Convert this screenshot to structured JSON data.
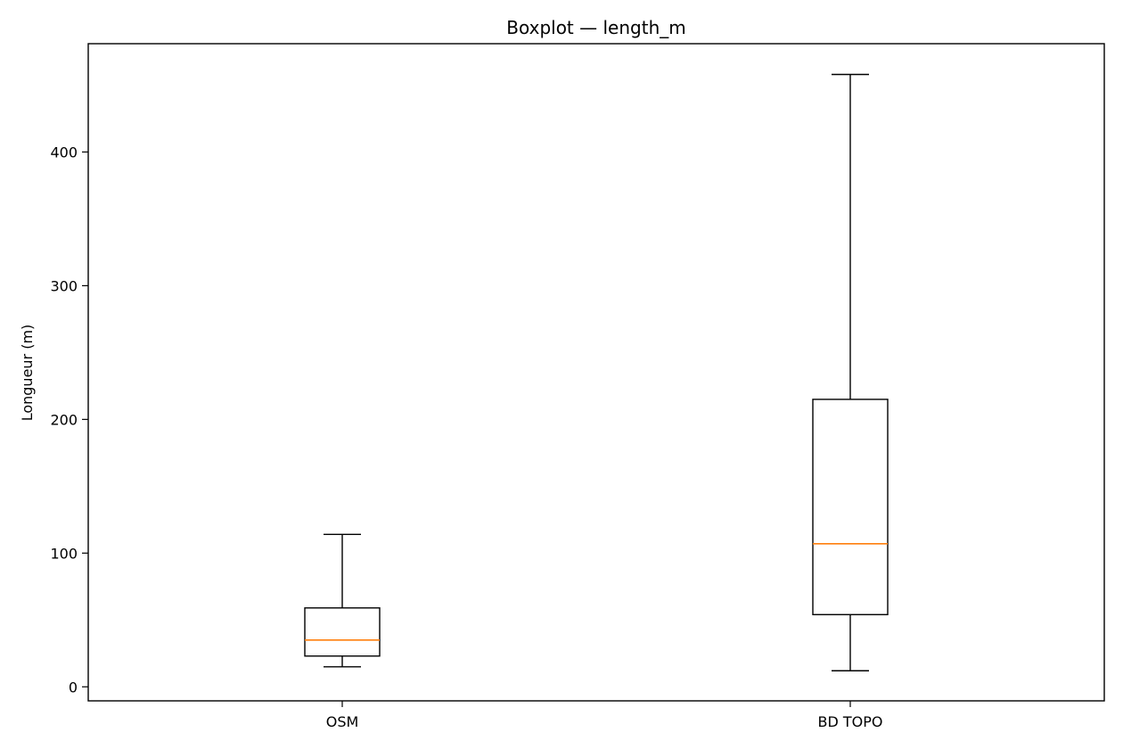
{
  "chart_data": {
    "type": "boxplot",
    "title": "Boxplot — length_m",
    "xlabel": "",
    "ylabel": "Longueur (m)",
    "categories": [
      "OSM",
      "BD TOPO"
    ],
    "boxes": [
      {
        "category": "OSM",
        "whisker_low": 15,
        "q1": 23,
        "median": 35,
        "q3": 59,
        "whisker_high": 114
      },
      {
        "category": "BD TOPO",
        "whisker_low": 12,
        "q1": 54,
        "median": 107,
        "q3": 215,
        "whisker_high": 458
      }
    ],
    "y_ticks": [
      0,
      100,
      200,
      300,
      400
    ],
    "ylim": [
      -10.5,
      481
    ],
    "grid": false,
    "colors": {
      "box": "#000000",
      "median": "#ff7f0e"
    }
  }
}
